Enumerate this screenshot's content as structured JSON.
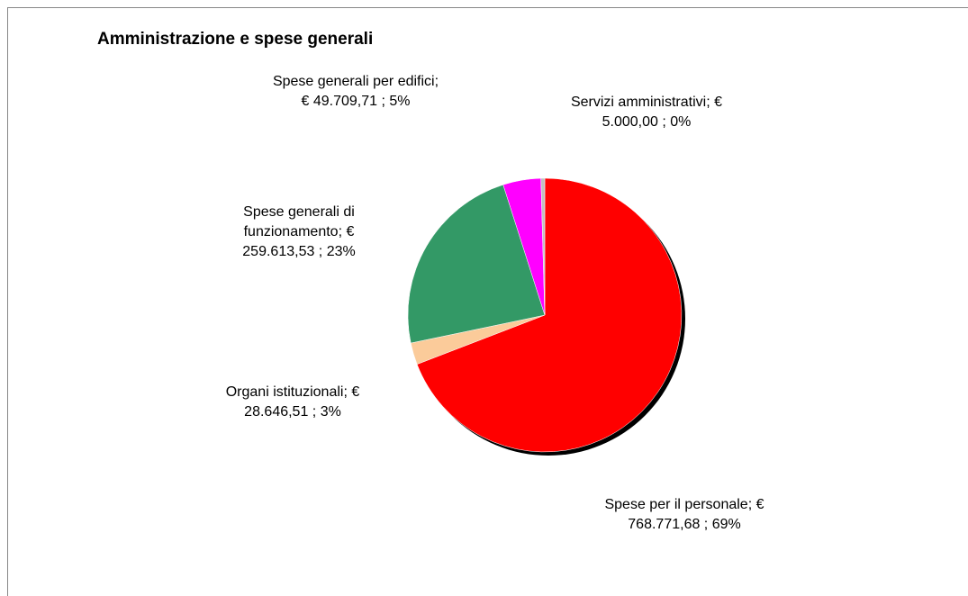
{
  "chart_data": {
    "type": "pie",
    "title": "Amministrazione e spese generali",
    "categories": [
      "Spese per il personale;",
      "Organi istituzionali;",
      "Spese generali di funzionamento;",
      "Spese generali per edifici;",
      "Servizi amministrativi;"
    ],
    "values": [
      768771.68,
      28646.51,
      259613.53,
      49709.71,
      5000.0
    ],
    "value_labels": [
      "€ 768.771,68 ; 69%",
      "€ 28.646,51 ; 3%",
      "€ 259.613,53 ; 23%",
      "€ 49.709,71 ; 5%",
      "€ 5.000,00 ; 0%"
    ],
    "colors": [
      "#ff0000",
      "#fbcb9a",
      "#339966",
      "#ff00ff",
      "#c0c0c0"
    ]
  }
}
